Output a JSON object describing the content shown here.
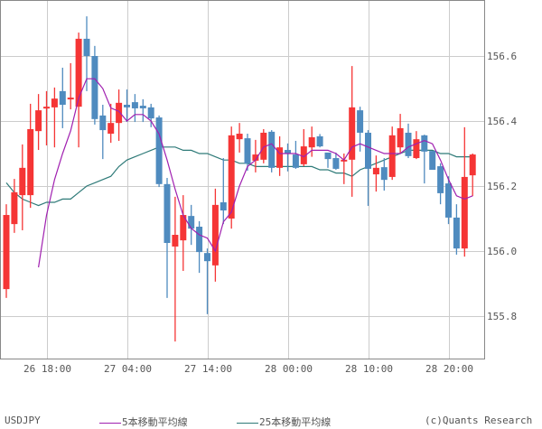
{
  "chart_data": {
    "type": "candlestick",
    "symbol": "USDJPY",
    "title": "",
    "xlabel": "",
    "ylabel": "",
    "ylim": [
      155.67,
      156.77
    ],
    "y_ticks": [
      155.8,
      156.0,
      156.2,
      156.4,
      156.6
    ],
    "y_tick_labels": [
      "155.8",
      "156.0",
      "156.2",
      "156.4",
      "156.6"
    ],
    "x_tick_labels": [
      "26 18:00",
      "27 04:00",
      "27 14:00",
      "28 00:00",
      "28 10:00",
      "28 20:00"
    ],
    "x_tick_candle_index": [
      5,
      15,
      25,
      35,
      45,
      55
    ],
    "grid": true,
    "interval": "1h",
    "colors": {
      "up": "#f53535",
      "down": "#4f8bbf",
      "ma5": "#a020b0",
      "ma25": "#2e7a78",
      "grid": "#cccccc",
      "frame": "#888888"
    },
    "candles": [
      {
        "o": 155.883,
        "h": 156.144,
        "l": 155.856,
        "c": 156.111
      },
      {
        "o": 156.083,
        "h": 156.222,
        "l": 156.056,
        "c": 156.181
      },
      {
        "o": 156.172,
        "h": 156.328,
        "l": 156.064,
        "c": 156.256
      },
      {
        "o": 156.172,
        "h": 156.453,
        "l": 156.133,
        "c": 156.375
      },
      {
        "o": 156.369,
        "h": 156.483,
        "l": 156.311,
        "c": 156.433
      },
      {
        "o": 156.439,
        "h": 156.492,
        "l": 156.325,
        "c": 156.444
      },
      {
        "o": 156.442,
        "h": 156.503,
        "l": 156.319,
        "c": 156.469
      },
      {
        "o": 156.492,
        "h": 156.564,
        "l": 156.378,
        "c": 156.45
      },
      {
        "o": 156.467,
        "h": 156.578,
        "l": 156.436,
        "c": 156.472
      },
      {
        "o": 156.444,
        "h": 156.672,
        "l": 156.319,
        "c": 156.653
      },
      {
        "o": 156.653,
        "h": 156.722,
        "l": 156.492,
        "c": 156.6
      },
      {
        "o": 156.6,
        "h": 156.631,
        "l": 156.389,
        "c": 156.406
      },
      {
        "o": 156.417,
        "h": 156.45,
        "l": 156.283,
        "c": 156.372
      },
      {
        "o": 156.361,
        "h": 156.453,
        "l": 156.333,
        "c": 156.394
      },
      {
        "o": 156.394,
        "h": 156.497,
        "l": 156.339,
        "c": 156.456
      },
      {
        "o": 156.45,
        "h": 156.497,
        "l": 156.397,
        "c": 156.442
      },
      {
        "o": 156.458,
        "h": 156.483,
        "l": 156.397,
        "c": 156.439
      },
      {
        "o": 156.447,
        "h": 156.467,
        "l": 156.397,
        "c": 156.439
      },
      {
        "o": 156.442,
        "h": 156.453,
        "l": 156.381,
        "c": 156.408
      },
      {
        "o": 156.411,
        "h": 156.417,
        "l": 156.197,
        "c": 156.206
      },
      {
        "o": 156.206,
        "h": 156.225,
        "l": 155.856,
        "c": 156.025
      },
      {
        "o": 156.014,
        "h": 156.167,
        "l": 155.722,
        "c": 156.05
      },
      {
        "o": 156.033,
        "h": 156.172,
        "l": 155.939,
        "c": 156.111
      },
      {
        "o": 156.108,
        "h": 156.142,
        "l": 156.019,
        "c": 156.069
      },
      {
        "o": 156.075,
        "h": 156.092,
        "l": 155.933,
        "c": 155.997
      },
      {
        "o": 155.994,
        "h": 156.008,
        "l": 155.806,
        "c": 155.969
      },
      {
        "o": 155.956,
        "h": 156.192,
        "l": 155.906,
        "c": 156.142
      },
      {
        "o": 156.15,
        "h": 156.286,
        "l": 156.083,
        "c": 156.125
      },
      {
        "o": 156.1,
        "h": 156.383,
        "l": 156.069,
        "c": 156.356
      },
      {
        "o": 156.344,
        "h": 156.394,
        "l": 156.303,
        "c": 156.361
      },
      {
        "o": 156.347,
        "h": 156.361,
        "l": 156.247,
        "c": 156.269
      },
      {
        "o": 156.278,
        "h": 156.342,
        "l": 156.242,
        "c": 156.297
      },
      {
        "o": 156.281,
        "h": 156.375,
        "l": 156.27,
        "c": 156.364
      },
      {
        "o": 156.367,
        "h": 156.372,
        "l": 156.242,
        "c": 156.256
      },
      {
        "o": 156.256,
        "h": 156.353,
        "l": 156.231,
        "c": 156.319
      },
      {
        "o": 156.311,
        "h": 156.331,
        "l": 156.245,
        "c": 156.3
      },
      {
        "o": 156.297,
        "h": 156.339,
        "l": 156.253,
        "c": 156.256
      },
      {
        "o": 156.267,
        "h": 156.375,
        "l": 156.261,
        "c": 156.322
      },
      {
        "o": 156.319,
        "h": 156.383,
        "l": 156.29,
        "c": 156.35
      },
      {
        "o": 156.353,
        "h": 156.36,
        "l": 156.319,
        "c": 156.322
      },
      {
        "o": 156.303,
        "h": 156.3,
        "l": 156.256,
        "c": 156.283
      },
      {
        "o": 156.286,
        "h": 156.303,
        "l": 156.25,
        "c": 156.253
      },
      {
        "o": 156.278,
        "h": 156.3,
        "l": 156.206,
        "c": 156.281
      },
      {
        "o": 156.281,
        "h": 156.569,
        "l": 156.167,
        "c": 156.442
      },
      {
        "o": 156.433,
        "h": 156.444,
        "l": 156.306,
        "c": 156.364
      },
      {
        "o": 156.364,
        "h": 156.372,
        "l": 156.139,
        "c": 156.253
      },
      {
        "o": 156.236,
        "h": 156.294,
        "l": 156.183,
        "c": 156.256
      },
      {
        "o": 156.258,
        "h": 156.286,
        "l": 156.186,
        "c": 156.219
      },
      {
        "o": 156.228,
        "h": 156.383,
        "l": 156.219,
        "c": 156.356
      },
      {
        "o": 156.319,
        "h": 156.422,
        "l": 156.3,
        "c": 156.378
      },
      {
        "o": 156.364,
        "h": 156.392,
        "l": 156.286,
        "c": 156.292
      },
      {
        "o": 156.286,
        "h": 156.369,
        "l": 156.283,
        "c": 156.344
      },
      {
        "o": 156.356,
        "h": 156.358,
        "l": 156.208,
        "c": 156.306
      },
      {
        "o": 156.308,
        "h": 156.308,
        "l": 156.25,
        "c": 156.25
      },
      {
        "o": 156.261,
        "h": 156.27,
        "l": 156.144,
        "c": 156.178
      },
      {
        "o": 156.208,
        "h": 156.23,
        "l": 156.083,
        "c": 156.103
      },
      {
        "o": 156.103,
        "h": 156.144,
        "l": 155.989,
        "c": 156.008
      },
      {
        "o": 156.008,
        "h": 156.381,
        "l": 155.983,
        "c": 156.228
      },
      {
        "o": 156.233,
        "h": 156.3,
        "l": 156.169,
        "c": 156.297
      }
    ],
    "series": [
      {
        "name": "5本移動平均線",
        "type": "line",
        "color": "#a020b0",
        "values": [
          null,
          null,
          null,
          null,
          155.95,
          156.11,
          156.22,
          156.3,
          156.37,
          156.47,
          156.53,
          156.53,
          156.5,
          156.44,
          156.43,
          156.4,
          156.42,
          156.42,
          156.4,
          156.36,
          156.28,
          156.19,
          156.11,
          156.07,
          156.05,
          156.04,
          156.0,
          156.09,
          156.12,
          156.2,
          156.26,
          156.28,
          156.32,
          156.33,
          156.3,
          156.3,
          156.3,
          156.29,
          156.31,
          156.31,
          156.31,
          156.3,
          156.28,
          156.32,
          156.33,
          156.32,
          156.31,
          156.3,
          156.3,
          156.3,
          156.32,
          156.33,
          156.34,
          156.33,
          156.28,
          156.22,
          156.17,
          156.16,
          156.17
        ]
      },
      {
        "name": "25本移動平均線",
        "type": "line",
        "color": "#2e7a78",
        "values": [
          156.21,
          156.18,
          156.16,
          156.15,
          156.14,
          156.15,
          156.15,
          156.16,
          156.16,
          156.18,
          156.2,
          156.21,
          156.22,
          156.23,
          156.26,
          156.28,
          156.29,
          156.3,
          156.31,
          156.32,
          156.32,
          156.32,
          156.31,
          156.31,
          156.3,
          156.3,
          156.29,
          156.28,
          156.28,
          156.27,
          156.27,
          156.26,
          156.26,
          156.26,
          156.26,
          156.26,
          156.26,
          156.26,
          156.26,
          156.25,
          156.25,
          156.24,
          156.24,
          156.23,
          156.25,
          156.26,
          156.27,
          156.28,
          156.29,
          156.3,
          156.31,
          156.31,
          156.31,
          156.31,
          156.3,
          156.3,
          156.29,
          156.29,
          156.29
        ]
      }
    ],
    "legend": [
      {
        "label": "5本移動平均線",
        "color": "#a020b0"
      },
      {
        "label": "25本移動平均線",
        "color": "#2e7a78"
      }
    ],
    "legend_position": "bottom"
  },
  "footer": {
    "symbol": "USDJPY",
    "ma5_label": "5本移動平均線",
    "ma25_label": "25本移動平均線",
    "copyright": "(c)Quants Research"
  }
}
